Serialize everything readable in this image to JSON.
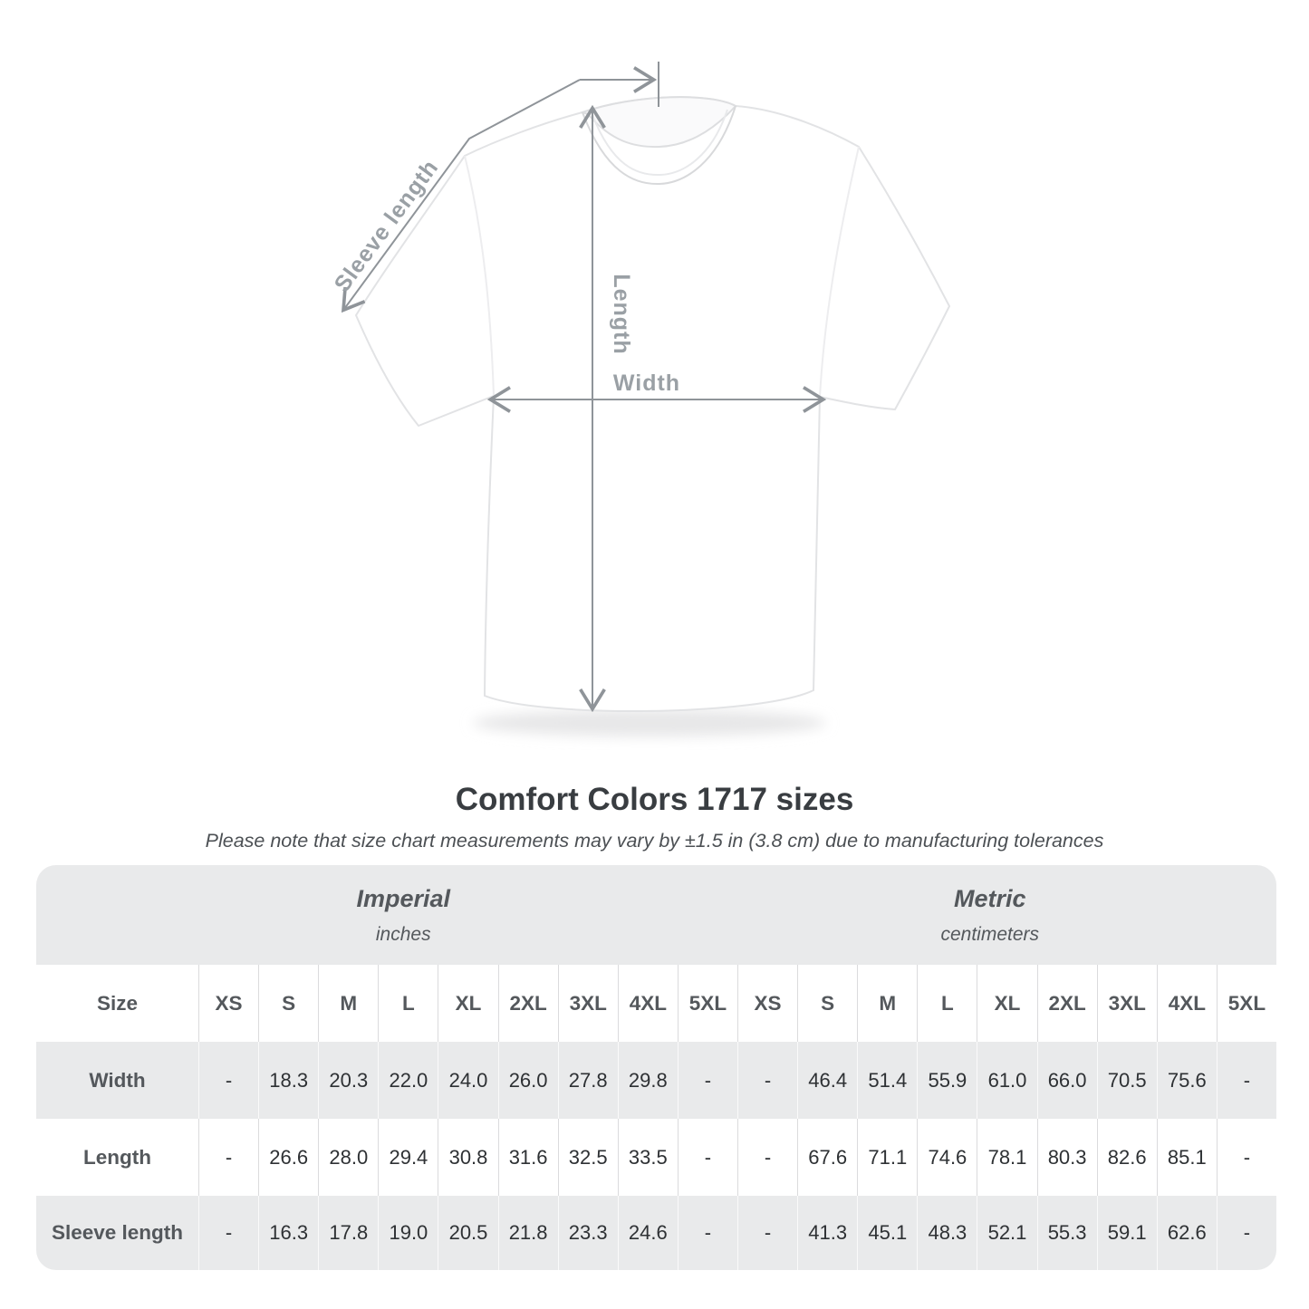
{
  "heading": {
    "title": "Comfort Colors 1717 sizes",
    "subtitle": "Please note that size chart measurements may vary by ±1.5 in (3.8 cm) due to manufacturing tolerances"
  },
  "diagram": {
    "sleeve_label": "Sleeve length",
    "length_label": "Length",
    "width_label": "Width"
  },
  "colors": {
    "measurement_line": "#8f9499",
    "diagram_label": "#9aa0a5",
    "table_band": "#e9eaeb",
    "label_text": "#54585c",
    "value_text": "#2e3134"
  },
  "table": {
    "size_label": "Size",
    "sizes": [
      "XS",
      "S",
      "M",
      "L",
      "XL",
      "2XL",
      "3XL",
      "4XL",
      "5XL"
    ],
    "unit_groups": [
      {
        "name": "Imperial",
        "unit": "inches"
      },
      {
        "name": "Metric",
        "unit": "centimeters"
      }
    ],
    "rows": [
      {
        "label": "Width",
        "imperial": [
          "-",
          "18.3",
          "20.3",
          "22.0",
          "24.0",
          "26.0",
          "27.8",
          "29.8",
          "-"
        ],
        "metric": [
          "-",
          "46.4",
          "51.4",
          "55.9",
          "61.0",
          "66.0",
          "70.5",
          "75.6",
          "-"
        ]
      },
      {
        "label": "Length",
        "imperial": [
          "-",
          "26.6",
          "28.0",
          "29.4",
          "30.8",
          "31.6",
          "32.5",
          "33.5",
          "-"
        ],
        "metric": [
          "-",
          "67.6",
          "71.1",
          "74.6",
          "78.1",
          "80.3",
          "82.6",
          "85.1",
          "-"
        ]
      },
      {
        "label": "Sleeve length",
        "imperial": [
          "-",
          "16.3",
          "17.8",
          "19.0",
          "20.5",
          "21.8",
          "23.3",
          "24.6",
          "-"
        ],
        "metric": [
          "-",
          "41.3",
          "45.1",
          "48.3",
          "52.1",
          "55.3",
          "59.1",
          "62.6",
          "-"
        ]
      }
    ]
  }
}
